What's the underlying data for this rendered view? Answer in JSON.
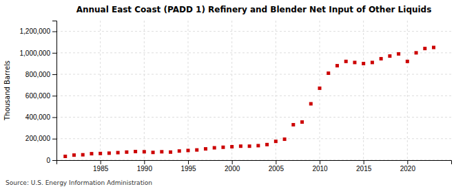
{
  "chart_data": {
    "type": "scatter",
    "title": "Annual East Coast (PADD 1) Refinery and Blender Net Input of Other Liquids",
    "ylabel": "Thousand Barrels",
    "source": "Source: U.S. Energy Information Administration",
    "x": [
      1981,
      1982,
      1983,
      1984,
      1985,
      1986,
      1987,
      1988,
      1989,
      1990,
      1991,
      1992,
      1993,
      1994,
      1995,
      1996,
      1997,
      1998,
      1999,
      2000,
      2001,
      2002,
      2003,
      2004,
      2005,
      2006,
      2007,
      2008,
      2009,
      2010,
      2011,
      2012,
      2013,
      2014,
      2015,
      2016,
      2017,
      2018,
      2019,
      2020,
      2021,
      2022,
      2023
    ],
    "values": [
      35000,
      47000,
      50000,
      60000,
      62000,
      65000,
      70000,
      75000,
      80000,
      78000,
      72000,
      78000,
      75000,
      85000,
      90000,
      95000,
      105000,
      115000,
      120000,
      125000,
      130000,
      130000,
      135000,
      145000,
      175000,
      195000,
      330000,
      355000,
      525000,
      670000,
      810000,
      880000,
      920000,
      910000,
      900000,
      910000,
      945000,
      970000,
      990000,
      920000,
      1000000,
      1040000,
      1050000
    ],
    "color": "#cc0000",
    "marker": "square",
    "xlim": [
      1980,
      2025
    ],
    "ylim": [
      0,
      1300000
    ],
    "xticks": [
      1985,
      1990,
      1995,
      2000,
      2005,
      2010,
      2015,
      2020
    ],
    "yticks": [
      0,
      {
        "value": 200000,
        "label": "200,000"
      },
      {
        "value": 400000,
        "label": "400,000"
      },
      {
        "value": 600000,
        "label": "600,000"
      },
      {
        "value": 800000,
        "label": "800,000"
      },
      {
        "value": 1000000,
        "label": "1,000,000"
      },
      {
        "value": 1200000,
        "label": "1,200,000"
      }
    ],
    "grid": true
  }
}
